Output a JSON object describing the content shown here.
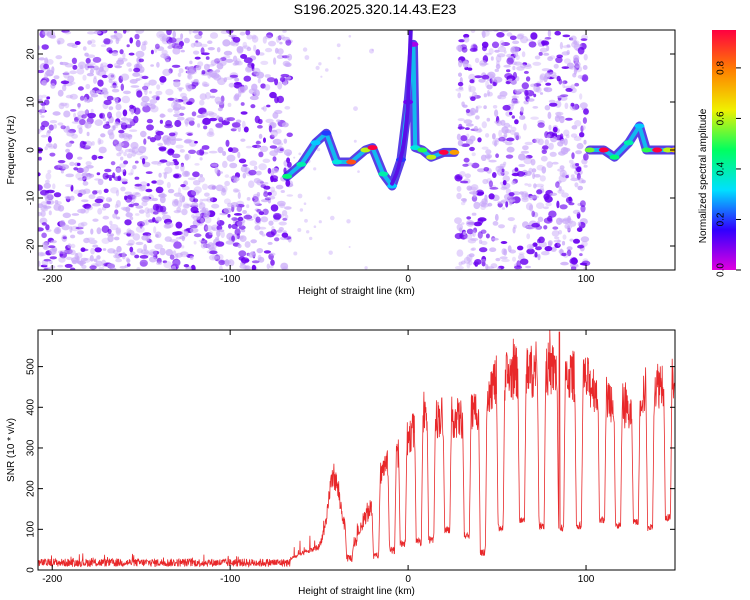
{
  "title": "S196.2025.320.14.43.E23",
  "colors": {
    "snr_line": "#e8282a",
    "scatter_main": "#6a00f0",
    "scatter_light": "#c8a8f8",
    "colorbar_stops": [
      "#e000e0",
      "#3000ff",
      "#00e0ff",
      "#00ff60",
      "#f0f000",
      "#ff8000",
      "#ff0040"
    ]
  },
  "chart_data": [
    {
      "type": "heatmap",
      "name": "spectrogram",
      "xlabel": "Height of straight line (km)",
      "ylabel": "Frequency (Hz)",
      "xlim": [
        -208,
        150
      ],
      "ylim": [
        -25,
        25
      ],
      "xticks": [
        -200,
        -100,
        0,
        100
      ],
      "yticks": [
        -20,
        -10,
        0,
        10,
        20
      ],
      "noise_regions_km": [
        [
          -208,
          -66
        ],
        [
          28,
          100
        ]
      ],
      "signal_track": [
        {
          "x": -68,
          "f": -5.5,
          "a": 0.45
        },
        {
          "x": -60,
          "f": -3,
          "a": 0.4
        },
        {
          "x": -52,
          "f": 1.5,
          "a": 0.3
        },
        {
          "x": -46,
          "f": 3.5,
          "a": 0.2
        },
        {
          "x": -40,
          "f": -2.5,
          "a": 0.35
        },
        {
          "x": -32,
          "f": -2.5,
          "a": 0.85
        },
        {
          "x": -24,
          "f": 0,
          "a": 0.6
        },
        {
          "x": -20,
          "f": 0.5,
          "a": 0.95
        },
        {
          "x": -14,
          "f": -5,
          "a": 0.4
        },
        {
          "x": -9,
          "f": -7.5,
          "a": 0.3
        },
        {
          "x": -4,
          "f": -2,
          "a": 0.2
        },
        {
          "x": 0,
          "f": 10,
          "a": 0.1
        },
        {
          "x": 3,
          "f": 22,
          "a": 0.05
        },
        {
          "x": 4,
          "f": 0.5,
          "a": 0.35
        },
        {
          "x": 8,
          "f": 0,
          "a": 0.5
        },
        {
          "x": 13,
          "f": -1.5,
          "a": 0.6
        },
        {
          "x": 20,
          "f": -0.5,
          "a": 0.95
        },
        {
          "x": 26,
          "f": -0.5,
          "a": 0.75
        },
        {
          "x": 102,
          "f": 0,
          "a": 0.55
        },
        {
          "x": 110,
          "f": 0,
          "a": 0.95
        },
        {
          "x": 116,
          "f": -1.5,
          "a": 0.45
        },
        {
          "x": 124,
          "f": 1.5,
          "a": 0.4
        },
        {
          "x": 130,
          "f": 5,
          "a": 0.3
        },
        {
          "x": 134,
          "f": 0,
          "a": 0.5
        },
        {
          "x": 140,
          "f": 0,
          "a": 0.95
        },
        {
          "x": 146,
          "f": 0,
          "a": 0.6
        },
        {
          "x": 150,
          "f": 0,
          "a": 0.7
        }
      ]
    },
    {
      "type": "colorbar",
      "name": "amplitude-scale",
      "label": "Normalized spectral amplitude",
      "range": [
        0.0,
        0.95
      ],
      "ticks": [
        "0.0",
        "0.2",
        "0.4",
        "0.6",
        "0.8"
      ],
      "tick_values": [
        0.0,
        0.2,
        0.4,
        0.6,
        0.8
      ]
    },
    {
      "type": "line",
      "name": "snr",
      "xlabel": "Height of straight line (km)",
      "ylabel": "SNR (10 * v/v)",
      "xlim": [
        -208,
        150
      ],
      "ylim": [
        0,
        590
      ],
      "xticks": [
        -200,
        -100,
        0,
        100
      ],
      "yticks": [
        0,
        100,
        200,
        300,
        400,
        500
      ],
      "baseline_noise": {
        "x_range": [
          -208,
          -66
        ],
        "mean": 18,
        "spread": 10
      },
      "envelope": [
        [
          -66,
          30
        ],
        [
          -50,
          60
        ],
        [
          -46,
          120
        ],
        [
          -44,
          210
        ],
        [
          -42,
          250
        ],
        [
          -40,
          220
        ],
        [
          -36,
          120
        ],
        [
          -30,
          60
        ],
        [
          -25,
          130
        ],
        [
          -20,
          160
        ],
        [
          -15,
          260
        ],
        [
          -10,
          280
        ],
        [
          -5,
          310
        ],
        [
          0,
          340
        ],
        [
          5,
          380
        ],
        [
          10,
          400
        ],
        [
          15,
          390
        ],
        [
          20,
          400
        ],
        [
          30,
          390
        ],
        [
          40,
          420
        ],
        [
          45,
          470
        ],
        [
          50,
          490
        ],
        [
          60,
          510
        ],
        [
          70,
          515
        ],
        [
          80,
          520
        ],
        [
          90,
          505
        ],
        [
          100,
          490
        ],
        [
          110,
          450
        ],
        [
          120,
          430
        ],
        [
          125,
          400
        ],
        [
          130,
          450
        ],
        [
          135,
          470
        ],
        [
          140,
          480
        ],
        [
          150,
          505
        ]
      ],
      "dips": [
        {
          "x": -33,
          "v": 20
        },
        {
          "x": -18,
          "v": 25
        },
        {
          "x": -9,
          "v": 40
        },
        {
          "x": -3,
          "v": 55
        },
        {
          "x": 6,
          "v": 60
        },
        {
          "x": 13,
          "v": 65
        },
        {
          "x": 22,
          "v": 90
        },
        {
          "x": 33,
          "v": 75
        },
        {
          "x": 42,
          "v": 35
        },
        {
          "x": 52,
          "v": 95
        },
        {
          "x": 64,
          "v": 115
        },
        {
          "x": 75,
          "v": 100
        },
        {
          "x": 86,
          "v": 95
        },
        {
          "x": 96,
          "v": 100
        },
        {
          "x": 109,
          "v": 115
        },
        {
          "x": 118,
          "v": 100
        },
        {
          "x": 128,
          "v": 110
        },
        {
          "x": 136,
          "v": 95
        },
        {
          "x": 146,
          "v": 120
        }
      ],
      "peak": {
        "x": 85,
        "v": 585
      }
    }
  ]
}
